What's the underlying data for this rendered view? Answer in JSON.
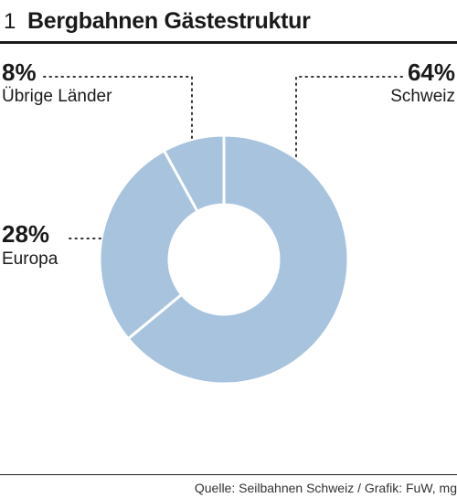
{
  "header": {
    "number": "1",
    "title": "Bergbahnen Gästestruktur"
  },
  "chart_data": {
    "type": "pie",
    "donut": true,
    "title": "Bergbahnen Gästestruktur",
    "slices": [
      {
        "label": "Schweiz",
        "value": 64,
        "display": "64%"
      },
      {
        "label": "Europa",
        "value": 28,
        "display": "28%"
      },
      {
        "label": "Übrige Länder",
        "value": 8,
        "display": "8%"
      }
    ],
    "colors": {
      "slice": "#a7c3de",
      "separator": "#ffffff",
      "text": "#1a1a1a"
    }
  },
  "footer": {
    "source": "Quelle: Seilbahnen Schweiz / Grafik: FuW, mg"
  }
}
